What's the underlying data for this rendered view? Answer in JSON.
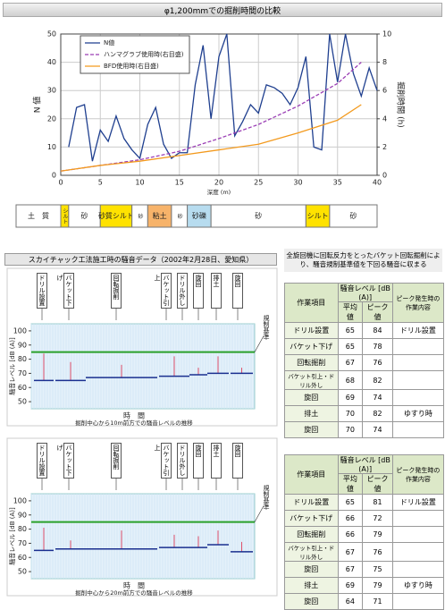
{
  "banner": "φ1,200mmでの掘削時間の比較",
  "chart_data": {
    "type": "line",
    "xlabel": "深度 (m)",
    "ylabel": "N 値",
    "y2label": "掘削時間 (h)",
    "xlim": [
      0,
      40
    ],
    "xticks": [
      0,
      5,
      10,
      15,
      20,
      25,
      30,
      35,
      40
    ],
    "ylim": [
      0,
      50
    ],
    "yticks": [
      0,
      10,
      20,
      30,
      40,
      50
    ],
    "y2lim": [
      0,
      10
    ],
    "y2ticks": [
      0,
      2,
      4,
      6,
      8,
      10
    ],
    "grid": true,
    "legend": "upper left",
    "series": [
      {
        "name": "N値",
        "color": "#1f3f8f",
        "dash": false,
        "axis": "y",
        "x": [
          1,
          2,
          3,
          4,
          5,
          6,
          7,
          8,
          9,
          10,
          11,
          12,
          13,
          14,
          15,
          16,
          17,
          18,
          19,
          20,
          21,
          22,
          23,
          24,
          25,
          26,
          27,
          28,
          29,
          30,
          31,
          32,
          33,
          34,
          35,
          36,
          37,
          38,
          39,
          40
        ],
        "values": [
          10,
          24,
          25,
          5,
          16,
          12,
          21,
          13,
          9,
          6,
          18,
          24,
          11,
          6,
          8,
          8,
          32,
          46,
          20,
          42,
          50,
          14,
          19,
          25,
          22,
          32,
          31,
          29,
          25,
          31,
          42,
          10,
          9,
          50,
          33,
          50,
          36,
          28,
          38,
          30
        ]
      },
      {
        "name": "ハンマグラブ使用時(右目盛)",
        "color": "#9b3fb5",
        "dash": true,
        "axis": "y2",
        "x": [
          0,
          5,
          10,
          15,
          20,
          25,
          30,
          35,
          38
        ],
        "values": [
          0.3,
          0.7,
          1.1,
          1.7,
          2.6,
          3.6,
          4.9,
          6.5,
          8.0
        ]
      },
      {
        "name": "BFD使用時(右目盛)",
        "color": "#f39a1e",
        "dash": false,
        "axis": "y2",
        "x": [
          0,
          5,
          10,
          15,
          20,
          25,
          30,
          35,
          38
        ],
        "values": [
          0.3,
          0.7,
          1.0,
          1.4,
          1.8,
          2.2,
          3.0,
          3.9,
          5.0
        ]
      }
    ]
  },
  "soil": {
    "label": "土　質",
    "layers": [
      {
        "name": "シルト",
        "from": 0,
        "to": 1,
        "color": "#ffe200"
      },
      {
        "name": "砂",
        "from": 1,
        "to": 5,
        "color": "#ffffff"
      },
      {
        "name": "砂質シルト",
        "from": 5,
        "to": 9,
        "color": "#ffe200"
      },
      {
        "name": "砂",
        "from": 9,
        "to": 11,
        "color": "#ffffff"
      },
      {
        "name": "粘土",
        "from": 11,
        "to": 14,
        "color": "#f7b36a"
      },
      {
        "name": "砂",
        "from": 14,
        "to": 16,
        "color": "#ffffff"
      },
      {
        "name": "砂礫",
        "from": 16,
        "to": 19,
        "color": "#b7dcef"
      },
      {
        "name": "砂",
        "from": 19,
        "to": 31,
        "color": "#ffffff"
      },
      {
        "name": "シルト",
        "from": 31,
        "to": 34,
        "color": "#ffe200"
      },
      {
        "name": "砂",
        "from": 34,
        "to": 40,
        "color": "#ffffff"
      }
    ]
  },
  "noise": {
    "header": "スカイチャック工法施工時の騒音データ（2002年2月28日、愛知県）",
    "note": "全旋回機に回転反力をとったバケット回転掘削により、騒音規制基準値を下回る騒音に収まる",
    "panels": [
      {
        "chart": {
          "ylabel": "騒音レベル [dB (A)]",
          "ylim": [
            45,
            105
          ],
          "yticks": [
            50,
            60,
            70,
            80,
            90,
            100
          ],
          "limit": 85,
          "limit_label": "規制基準",
          "xlabel": "時　間",
          "caption": "掘削中心から10m前方での騒音レベルの推移",
          "callouts": [
            "ドリル設置",
            "バケット下げ",
            "回転掘削",
            "バケット引上",
            "ドリル外し",
            "旋回",
            "排土",
            "旋回"
          ]
        },
        "table": {
          "headers": {
            "item": "作業項目",
            "level": "騒音レベル [dB (A)]",
            "avg": "平均値",
            "peak": "ピーク値",
            "content": "ピーク発生時の作業内容"
          },
          "rows": [
            [
              "ドリル設置",
              65,
              84,
              "ドリル設置"
            ],
            [
              "バケット下げ",
              65,
              78,
              null
            ],
            [
              "回転掘削",
              67,
              76,
              null
            ],
            [
              "バケット引上・ドリル外し",
              68,
              82,
              null
            ],
            [
              "旋回",
              69,
              74,
              null
            ],
            [
              "排土",
              70,
              82,
              "ゆすり時"
            ],
            [
              "旋回",
              70,
              74,
              null
            ]
          ]
        }
      },
      {
        "chart": {
          "ylabel": "騒音レベル [dB (A)]",
          "ylim": [
            45,
            105
          ],
          "yticks": [
            50,
            60,
            70,
            80,
            90,
            100
          ],
          "limit": 85,
          "limit_label": "規制基準",
          "xlabel": "時　間",
          "caption": "掘削中心から20m前方での騒音レベルの推移",
          "callouts": [
            "ドリル設置",
            "バケット下げ",
            "回転掘削",
            "バケット引上",
            "ドリル外し",
            "旋回",
            "排土",
            "旋回"
          ]
        },
        "table": {
          "headers": {
            "item": "作業項目",
            "level": "騒音レベル [dB (A)]",
            "avg": "平均値",
            "peak": "ピーク値",
            "content": "ピーク発生時の作業内容"
          },
          "rows": [
            [
              "ドリル設置",
              65,
              81,
              "ドリル設置"
            ],
            [
              "バケット下げ",
              66,
              72,
              null
            ],
            [
              "回転掘削",
              66,
              79,
              null
            ],
            [
              "バケット引上・ドリル外し",
              67,
              76,
              null
            ],
            [
              "旋回",
              67,
              75,
              null
            ],
            [
              "排土",
              69,
              79,
              "ゆすり時"
            ],
            [
              "旋回",
              64,
              71,
              null
            ]
          ]
        }
      }
    ]
  }
}
